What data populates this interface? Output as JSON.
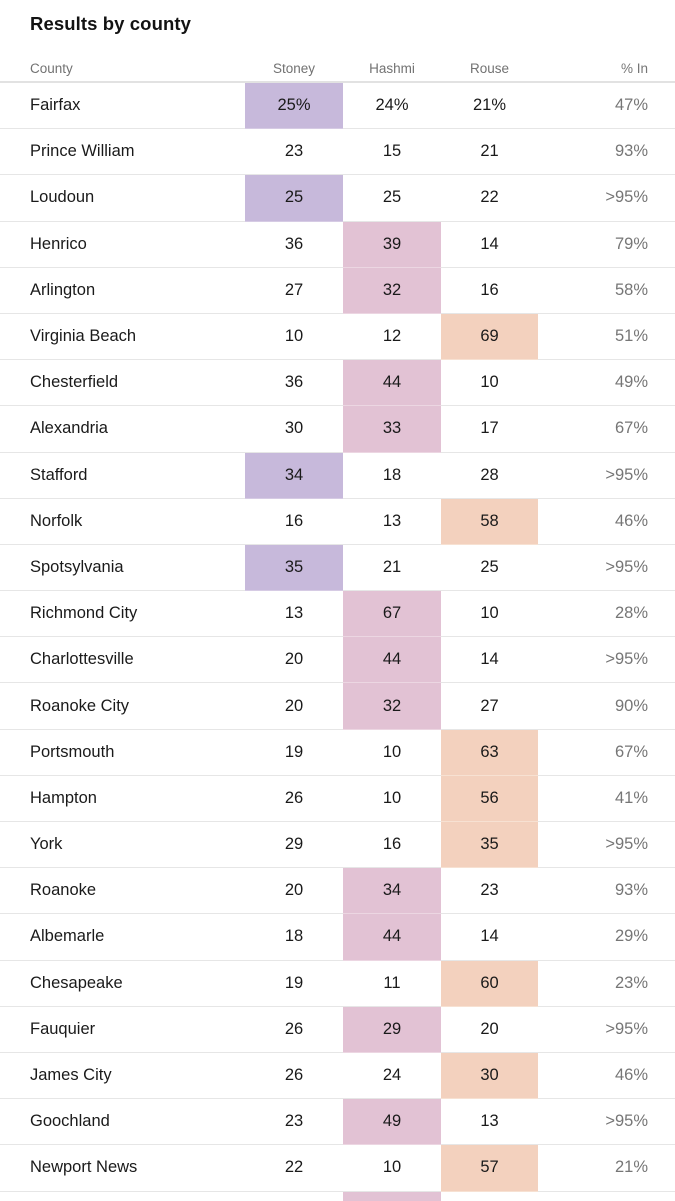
{
  "chart_data": {
    "type": "table",
    "title": "Results by county",
    "columns": [
      "County",
      "Stoney",
      "Hashmi",
      "Rouse",
      "% In"
    ],
    "rows": [
      {
        "county": "Fairfax",
        "stoney": "25%",
        "hashmi": "24%",
        "rouse": "21%",
        "pct_in": "47%",
        "leader": "stoney"
      },
      {
        "county": "Prince William",
        "stoney": "23",
        "hashmi": "15",
        "rouse": "21",
        "pct_in": "93%",
        "leader": null
      },
      {
        "county": "Loudoun",
        "stoney": "25",
        "hashmi": "25",
        "rouse": "22",
        "pct_in": ">95%",
        "leader": "stoney"
      },
      {
        "county": "Henrico",
        "stoney": "36",
        "hashmi": "39",
        "rouse": "14",
        "pct_in": "79%",
        "leader": "hashmi"
      },
      {
        "county": "Arlington",
        "stoney": "27",
        "hashmi": "32",
        "rouse": "16",
        "pct_in": "58%",
        "leader": "hashmi"
      },
      {
        "county": "Virginia Beach",
        "stoney": "10",
        "hashmi": "12",
        "rouse": "69",
        "pct_in": "51%",
        "leader": "rouse"
      },
      {
        "county": "Chesterfield",
        "stoney": "36",
        "hashmi": "44",
        "rouse": "10",
        "pct_in": "49%",
        "leader": "hashmi"
      },
      {
        "county": "Alexandria",
        "stoney": "30",
        "hashmi": "33",
        "rouse": "17",
        "pct_in": "67%",
        "leader": "hashmi"
      },
      {
        "county": "Stafford",
        "stoney": "34",
        "hashmi": "18",
        "rouse": "28",
        "pct_in": ">95%",
        "leader": "stoney"
      },
      {
        "county": "Norfolk",
        "stoney": "16",
        "hashmi": "13",
        "rouse": "58",
        "pct_in": "46%",
        "leader": "rouse"
      },
      {
        "county": "Spotsylvania",
        "stoney": "35",
        "hashmi": "21",
        "rouse": "25",
        "pct_in": ">95%",
        "leader": "stoney"
      },
      {
        "county": "Richmond City",
        "stoney": "13",
        "hashmi": "67",
        "rouse": "10",
        "pct_in": "28%",
        "leader": "hashmi"
      },
      {
        "county": "Charlottesville",
        "stoney": "20",
        "hashmi": "44",
        "rouse": "14",
        "pct_in": ">95%",
        "leader": "hashmi"
      },
      {
        "county": "Roanoke City",
        "stoney": "20",
        "hashmi": "32",
        "rouse": "27",
        "pct_in": "90%",
        "leader": "hashmi"
      },
      {
        "county": "Portsmouth",
        "stoney": "19",
        "hashmi": "10",
        "rouse": "63",
        "pct_in": "67%",
        "leader": "rouse"
      },
      {
        "county": "Hampton",
        "stoney": "26",
        "hashmi": "10",
        "rouse": "56",
        "pct_in": "41%",
        "leader": "rouse"
      },
      {
        "county": "York",
        "stoney": "29",
        "hashmi": "16",
        "rouse": "35",
        "pct_in": ">95%",
        "leader": "rouse"
      },
      {
        "county": "Roanoke",
        "stoney": "20",
        "hashmi": "34",
        "rouse": "23",
        "pct_in": "93%",
        "leader": "hashmi"
      },
      {
        "county": "Albemarle",
        "stoney": "18",
        "hashmi": "44",
        "rouse": "14",
        "pct_in": "29%",
        "leader": "hashmi"
      },
      {
        "county": "Chesapeake",
        "stoney": "19",
        "hashmi": "11",
        "rouse": "60",
        "pct_in": "23%",
        "leader": "rouse"
      },
      {
        "county": "Fauquier",
        "stoney": "26",
        "hashmi": "29",
        "rouse": "20",
        "pct_in": ">95%",
        "leader": "hashmi"
      },
      {
        "county": "James City",
        "stoney": "26",
        "hashmi": "24",
        "rouse": "30",
        "pct_in": "46%",
        "leader": "rouse"
      },
      {
        "county": "Goochland",
        "stoney": "23",
        "hashmi": "49",
        "rouse": "13",
        "pct_in": ">95%",
        "leader": "hashmi"
      },
      {
        "county": "Newport News",
        "stoney": "22",
        "hashmi": "10",
        "rouse": "57",
        "pct_in": "21%",
        "leader": "rouse"
      }
    ],
    "partial_next_row": {
      "leader": "hashmi"
    },
    "highlight_colors": {
      "stoney": {
        "bg": "#c7b9db",
        "divider": "#d6cbe4"
      },
      "hashmi": {
        "bg": "#e2c2d4",
        "divider": "#ecd6e2"
      },
      "rouse": {
        "bg": "#f3d1be",
        "divider": "#f7e1d2"
      }
    },
    "layout_hints": {
      "legend_position": "none",
      "grid": "horizontal row dividers only",
      "value_alignment": {
        "county": "left",
        "candidates": "center",
        "pct_in": "right"
      }
    }
  },
  "colors": {
    "title_text": "#121212",
    "header_text": "#727272",
    "body_text": "#1a1a1a",
    "pct_in_text": "#767676",
    "row_divider": "#e6e6e6",
    "header_divider": "#e2e2e2",
    "background": "#ffffff"
  }
}
